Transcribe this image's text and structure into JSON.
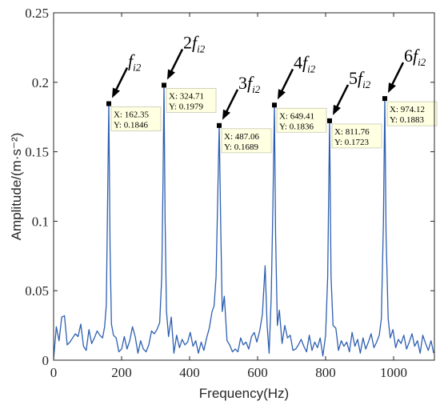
{
  "chart_data": {
    "type": "line",
    "xlabel": "Frequency(Hz)",
    "ylabel": "Amplitude/(m·s⁻²)",
    "xlim": [
      0,
      1120
    ],
    "ylim": [
      0,
      0.25
    ],
    "xticks": [
      "0",
      "200",
      "400",
      "600",
      "800",
      "1000"
    ],
    "yticks": [
      "0",
      "0.05",
      "0.1",
      "0.15",
      "0.2",
      "0.25"
    ],
    "grid": false,
    "line_color": "#2d5fb0",
    "series": [
      {
        "x": [
          0,
          8,
          16,
          24,
          32,
          40,
          48,
          56,
          64,
          72,
          80,
          88,
          96,
          104,
          112,
          120,
          128,
          136,
          144,
          150,
          155,
          158,
          162.35,
          166,
          170,
          176,
          184,
          192,
          200,
          208,
          216,
          224,
          232,
          240,
          248,
          256,
          264,
          272,
          280,
          288,
          296,
          304,
          312,
          318,
          322,
          324.71,
          328,
          332,
          338,
          346,
          354,
          362,
          370,
          378,
          386,
          394,
          402,
          410,
          418,
          426,
          434,
          442,
          450,
          458,
          466,
          472,
          478,
          482,
          487.06,
          492,
          496,
          502,
          510,
          518,
          526,
          534,
          542,
          550,
          558,
          566,
          574,
          582,
          590,
          598,
          606,
          614,
          622,
          628,
          634,
          640,
          645,
          649.41,
          653,
          658,
          664,
          672,
          680,
          688,
          696,
          704,
          712,
          720,
          728,
          736,
          744,
          752,
          760,
          768,
          776,
          784,
          792,
          800,
          806,
          811.76,
          816,
          822,
          830,
          838,
          846,
          854,
          862,
          870,
          878,
          886,
          894,
          902,
          910,
          918,
          926,
          934,
          942,
          950,
          958,
          964,
          970,
          974.12,
          978,
          984,
          990,
          998,
          1006,
          1014,
          1022,
          1030,
          1038,
          1046,
          1054,
          1062,
          1070,
          1078,
          1086,
          1094,
          1102,
          1110,
          1118
        ],
        "y": [
          0.001,
          0.024,
          0.014,
          0.031,
          0.032,
          0.011,
          0.013,
          0.016,
          0.019,
          0.017,
          0.026,
          0.01,
          0.007,
          0.022,
          0.012,
          0.016,
          0.021,
          0.018,
          0.016,
          0.024,
          0.04,
          0.1,
          0.1846,
          0.08,
          0.026,
          0.018,
          0.016,
          0.006,
          0.008,
          0.017,
          0.008,
          0.014,
          0.024,
          0.017,
          0.005,
          0.014,
          0.008,
          0.006,
          0.011,
          0.021,
          0.019,
          0.022,
          0.027,
          0.06,
          0.13,
          0.1979,
          0.1,
          0.035,
          0.017,
          0.031,
          0.005,
          0.018,
          0.009,
          0.015,
          0.011,
          0.013,
          0.02,
          0.01,
          0.014,
          0.005,
          0.013,
          0.007,
          0.016,
          0.023,
          0.035,
          0.039,
          0.06,
          0.11,
          0.1689,
          0.09,
          0.035,
          0.046,
          0.014,
          0.011,
          0.006,
          0.008,
          0.006,
          0.016,
          0.011,
          0.013,
          0.008,
          0.017,
          0.02,
          0.013,
          0.021,
          0.033,
          0.068,
          0.025,
          0.005,
          0.045,
          0.11,
          0.1836,
          0.09,
          0.025,
          0.036,
          0.012,
          0.025,
          0.016,
          0.018,
          0.007,
          0.008,
          0.011,
          0.015,
          0.01,
          0.006,
          0.018,
          0.007,
          0.013,
          0.009,
          0.016,
          0.003,
          0.018,
          0.06,
          0.1723,
          0.06,
          0.025,
          0.023,
          0.007,
          0.014,
          0.01,
          0.013,
          0.006,
          0.02,
          0.01,
          0.015,
          0.005,
          0.016,
          0.008,
          0.013,
          0.019,
          0.009,
          0.013,
          0.018,
          0.03,
          0.1,
          0.1883,
          0.09,
          0.03,
          0.016,
          0.022,
          0.009,
          0.015,
          0.012,
          0.018,
          0.008,
          0.013,
          0.019,
          0.01,
          0.014,
          0.005,
          0.018,
          0.012,
          0.007,
          0.014,
          0.005
        ]
      }
    ],
    "datatips": [
      {
        "x": 162.35,
        "y": 0.1846,
        "x_text": "X: 162.35",
        "y_text": "Y: 0.1846"
      },
      {
        "x": 324.71,
        "y": 0.1979,
        "x_text": "X: 324.71",
        "y_text": "Y: 0.1979"
      },
      {
        "x": 487.06,
        "y": 0.1689,
        "x_text": "X: 487.06",
        "y_text": "Y: 0.1689"
      },
      {
        "x": 649.41,
        "y": 0.1836,
        "x_text": "X: 649.41",
        "y_text": "Y: 0.1836"
      },
      {
        "x": 811.76,
        "y": 0.1723,
        "x_text": "X: 811.76",
        "y_text": "Y: 0.1723"
      },
      {
        "x": 974.12,
        "y": 0.1883,
        "x_text": "X: 974.12",
        "y_text": "Y: 0.1883"
      }
    ],
    "annotations": [
      {
        "x": 162.35,
        "y": 0.1846,
        "coef": "",
        "sym": "f",
        "sub": "i2"
      },
      {
        "x": 324.71,
        "y": 0.1979,
        "coef": "2",
        "sym": "f",
        "sub": "i2"
      },
      {
        "x": 487.06,
        "y": 0.1689,
        "coef": "3",
        "sym": "f",
        "sub": "i2"
      },
      {
        "x": 649.41,
        "y": 0.1836,
        "coef": "4",
        "sym": "f",
        "sub": "i2"
      },
      {
        "x": 811.76,
        "y": 0.1723,
        "coef": "5",
        "sym": "f",
        "sub": "i2"
      },
      {
        "x": 974.12,
        "y": 0.1883,
        "coef": "6",
        "sym": "f",
        "sub": "i2"
      }
    ]
  }
}
